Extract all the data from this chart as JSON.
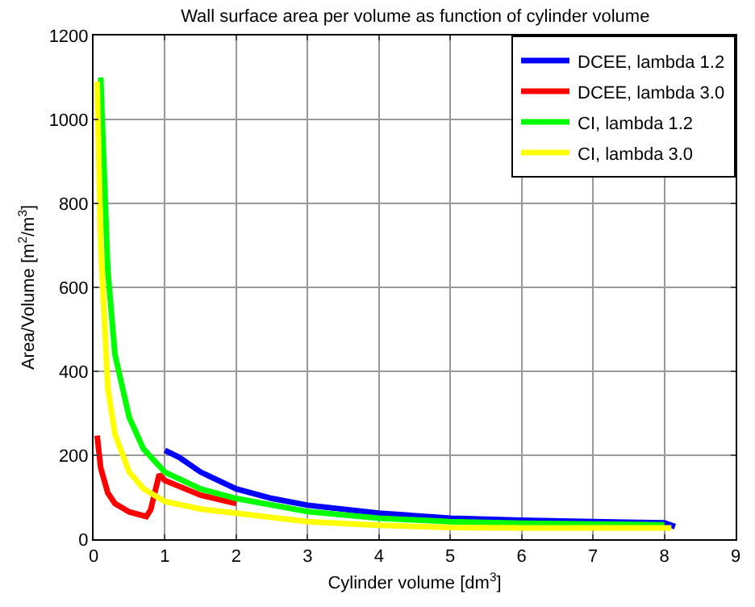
{
  "chart_data": {
    "type": "line",
    "title": "Wall surface area per volume as function of cylinder volume",
    "xlabel": "Cylinder volume [dm$^{3}$]",
    "ylabel": "Area/Volume [m$^{2}$/m$^{3}$]",
    "xlim": [
      0,
      9
    ],
    "xticks": [
      0,
      1,
      2,
      3,
      4,
      5,
      6,
      7,
      8,
      9
    ],
    "ylim": [
      0,
      1200
    ],
    "yticks": [
      0,
      200,
      400,
      600,
      800,
      1000,
      1200
    ],
    "grid": true,
    "legend": "top right",
    "line_style": "solid",
    "marker": "none",
    "series": [
      {
        "name": "DCEE, lambda 1.2",
        "color": "#0000ff",
        "x": [
          1,
          1.2,
          1.5,
          2,
          2.5,
          3,
          4,
          5,
          6,
          7,
          8,
          8.15
        ],
        "values": [
          212,
          195,
          160,
          120,
          97,
          81,
          62,
          50,
          45,
          42,
          39,
          30
        ]
      },
      {
        "name": "DCEE, lambda 3.0",
        "color": "#ff0000",
        "x": [
          0.05,
          0.1,
          0.2,
          0.3,
          0.5,
          0.74,
          0.8,
          0.92,
          1,
          1.5,
          2
        ],
        "values": [
          247,
          170,
          110,
          85,
          65,
          54,
          70,
          154,
          140,
          105,
          85
        ]
      },
      {
        "name": "CI, lambda 1.2",
        "color": "#00ff00",
        "x": [
          0.1,
          0.2,
          0.3,
          0.5,
          0.7,
          1,
          1.5,
          2,
          3,
          4,
          5,
          6,
          7,
          8
        ],
        "values": [
          1100,
          640,
          440,
          290,
          215,
          160,
          120,
          97,
          66,
          50,
          42,
          38,
          36,
          34
        ]
      },
      {
        "name": "CI, lambda 3.0",
        "color": "#ffff00",
        "x": [
          0.05,
          0.1,
          0.2,
          0.3,
          0.5,
          0.7,
          1,
          1.5,
          2,
          3,
          4,
          5,
          6,
          7,
          8.1
        ],
        "values": [
          1090,
          700,
          360,
          250,
          160,
          120,
          90,
          72,
          62,
          42,
          33,
          28,
          27,
          27,
          27
        ]
      }
    ]
  }
}
